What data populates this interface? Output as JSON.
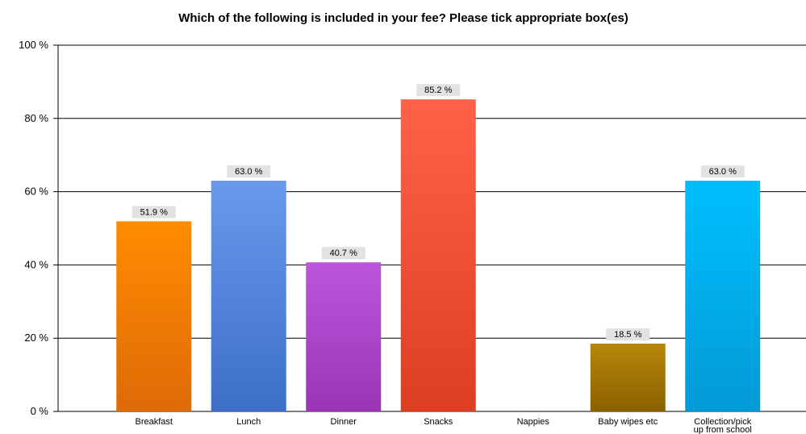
{
  "chart_data": {
    "type": "bar",
    "title": "Which of the following is included in your fee? Please tick appropriate box(es)",
    "xlabel": "",
    "ylabel": "",
    "ylim": [
      0,
      100
    ],
    "y_ticks": [
      "0 %",
      "20 %",
      "40 %",
      "60 %",
      "80 %",
      "100 %"
    ],
    "grid": true,
    "categories": [
      "Breakfast",
      "Lunch",
      "Dinner",
      "Snacks",
      "Nappies",
      "Baby wipes etc",
      "Collection/pick up from school"
    ],
    "category_lines": [
      [
        "Breakfast"
      ],
      [
        "Lunch"
      ],
      [
        "Dinner"
      ],
      [
        "Snacks"
      ],
      [
        "Nappies"
      ],
      [
        "Baby wipes etc"
      ],
      [
        "Collection/pick",
        "up from school"
      ]
    ],
    "values": [
      51.9,
      63.0,
      40.7,
      85.2,
      0,
      18.5,
      63.0
    ],
    "data_labels": [
      "51.9 %",
      "63.0 %",
      "40.7 %",
      "85.2 %",
      "",
      "18.5 %",
      "63.0 %"
    ],
    "colors": [
      [
        "#ff8c00",
        "#de6a08"
      ],
      [
        "#6a98ec",
        "#3d6fc8"
      ],
      [
        "#bd55dd",
        "#9a35b4"
      ],
      [
        "#ff6248",
        "#db3f22"
      ],
      [
        "#999999",
        "#777777"
      ],
      [
        "#b8860b",
        "#8a6100"
      ],
      [
        "#00bfff",
        "#0399d6"
      ]
    ]
  }
}
